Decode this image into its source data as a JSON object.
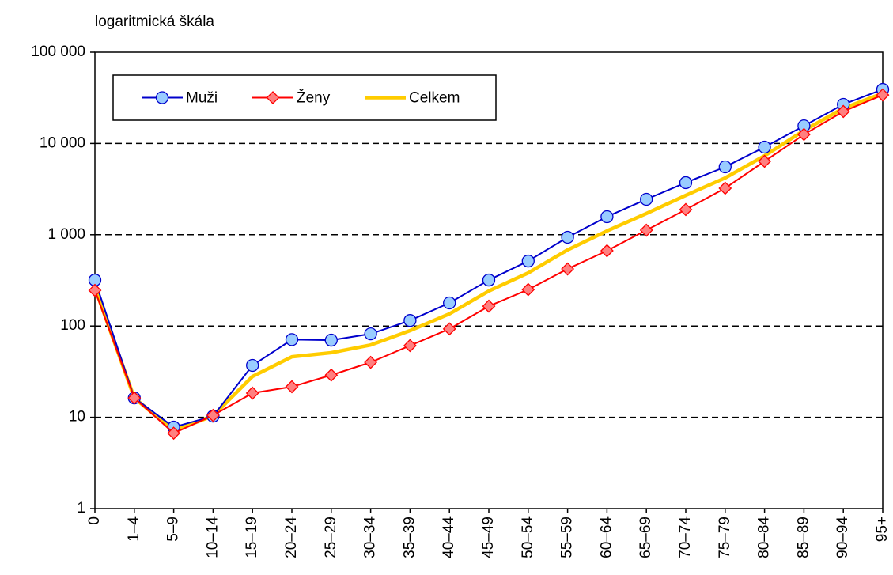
{
  "chart_data": {
    "type": "line",
    "annotation": "logaritmická škála",
    "log_scale": true,
    "grid": true,
    "legend": "upper left",
    "categories": [
      "0",
      "1–4",
      "5–9",
      "10–14",
      "15–19",
      "20–24",
      "25–29",
      "30–34",
      "35–39",
      "40–44",
      "45–49",
      "50–54",
      "55–59",
      "60–64",
      "65–69",
      "70–74",
      "75–79",
      "80–84",
      "85–89",
      "90–94",
      "95+"
    ],
    "ylim": [
      1,
      100000
    ],
    "yticks": [
      1,
      10,
      100,
      {
        "value": 1000,
        "label": "1 000"
      },
      {
        "value": 10000,
        "label": "10 000"
      },
      {
        "value": 100000,
        "label": "100 000"
      }
    ],
    "series": [
      {
        "name": "Muži",
        "color": "#0000cc",
        "marker": "circle",
        "marker_color": "#99ccff",
        "values": [
          319,
          16.3,
          7.8,
          10.3,
          37,
          71,
          70,
          82,
          115,
          179,
          319,
          515,
          938,
          1577,
          2445,
          3720,
          5540,
          9120,
          15600,
          26800,
          39100
        ]
      },
      {
        "name": "Ženy",
        "color": "#ff0000",
        "marker": "diamond",
        "marker_color": "#ff8080",
        "values": [
          246,
          16.3,
          6.7,
          10.5,
          18.4,
          21.6,
          29,
          40,
          61,
          93,
          165,
          251,
          422,
          668,
          1122,
          1888,
          3235,
          6370,
          12550,
          22400,
          34000
        ]
      },
      {
        "name": "Celkem",
        "color": "#ffcc00",
        "marker": "none",
        "values": [
          262,
          16.3,
          7.1,
          10.4,
          28,
          46,
          51,
          62,
          89,
          136,
          242,
          382,
          682,
          1101,
          1708,
          2700,
          4190,
          7330,
          13870,
          24250,
          35400
        ]
      }
    ]
  }
}
